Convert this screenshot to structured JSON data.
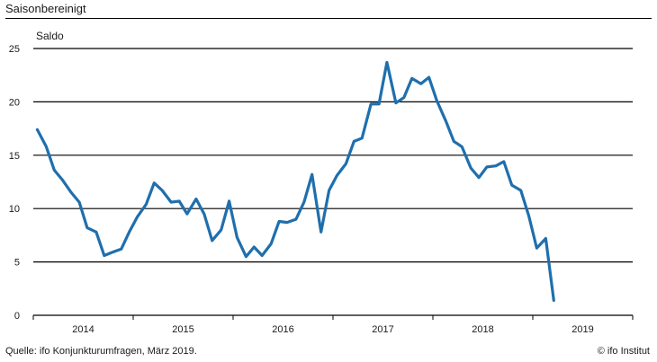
{
  "header": {
    "title": "Saisonbereinigt"
  },
  "footer": {
    "source": "Quelle: ifo Konjunkturumfragen,  März 2019.",
    "credit": "© ifo Institut"
  },
  "chart_data": {
    "type": "line",
    "title": "",
    "ylabel": "Saldo",
    "xlabel": "",
    "ylim": [
      0,
      25
    ],
    "yticks": [
      0,
      5,
      10,
      15,
      20,
      25
    ],
    "grid": true,
    "legend": "none",
    "line_color": "#1f6fad",
    "x_start_year": 2013.5,
    "x_end_year": 2019.5,
    "year_labels": [
      "2014",
      "2015",
      "2016",
      "2017",
      "2018",
      "2019"
    ],
    "series": [
      {
        "x": [
          2013.54,
          2013.63,
          2013.71,
          2013.79,
          2013.88,
          2013.96,
          2014.04,
          2014.13,
          2014.21,
          2014.29,
          2014.38,
          2014.46,
          2014.54,
          2014.63,
          2014.71,
          2014.79,
          2014.88,
          2014.96,
          2015.04,
          2015.13,
          2015.21,
          2015.29,
          2015.38,
          2015.46,
          2015.54,
          2015.63,
          2015.71,
          2015.79,
          2015.88,
          2015.96,
          2016.04,
          2016.13,
          2016.21,
          2016.29,
          2016.38,
          2016.46,
          2016.54,
          2016.63,
          2016.71,
          2016.79,
          2016.88,
          2016.96,
          2017.04,
          2017.13,
          2017.21,
          2017.29,
          2017.38,
          2017.46,
          2017.54,
          2017.63,
          2017.71,
          2017.79,
          2017.88,
          2017.96,
          2018.04,
          2018.13,
          2018.21,
          2018.29,
          2018.38,
          2018.46,
          2018.54,
          2018.63,
          2018.71
        ],
        "values": [
          17.4,
          15.8,
          13.6,
          12.7,
          11.5,
          10.6,
          8.2,
          7.8,
          5.6,
          5.9,
          6.2,
          7.8,
          9.2,
          10.4,
          12.4,
          11.7,
          10.6,
          10.7,
          9.5,
          10.9,
          9.5,
          7.0,
          8.0,
          10.7,
          7.3,
          5.5,
          6.4,
          5.6,
          6.7,
          8.8,
          8.7,
          9.0,
          10.6,
          13.2,
          7.8,
          11.7,
          13.1,
          14.2,
          16.3,
          16.6,
          19.8,
          19.8,
          23.7,
          19.9,
          20.4,
          22.2,
          21.7,
          22.3,
          20.1,
          18.2,
          16.3,
          15.8,
          13.8,
          12.9,
          13.9,
          14.0,
          14.4,
          12.2,
          11.7,
          9.3,
          6.3,
          7.2,
          1.4
        ]
      }
    ]
  }
}
